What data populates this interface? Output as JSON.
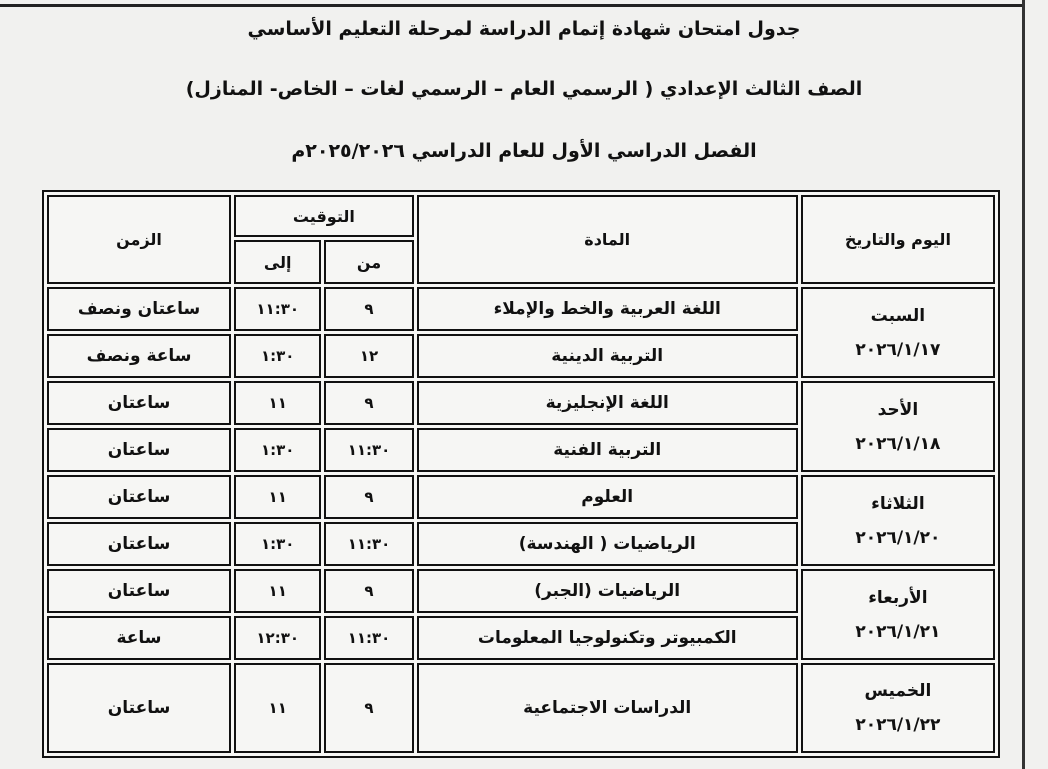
{
  "titles": {
    "line1": "جدول امتحان شهادة إتمام الدراسة لمرحلة التعليم الأساسي",
    "line2": "الصف الثالث الإعدادي ( الرسمي العام – الرسمي لغات – الخاص- المنازل)",
    "line3": "الفصل الدراسي الأول للعام الدراسي ٢٠٢٥/٢٠٢٦م"
  },
  "table": {
    "headers": {
      "day_date": "اليوم والتاريخ",
      "subject": "المادة",
      "timing": "التوقيت",
      "from": "من",
      "to": "إلى",
      "duration": "الزمن"
    },
    "days": [
      {
        "day": "السبت",
        "date": "٢٠٢٦/١/١٧",
        "exams": [
          {
            "subject": "اللغة العربية والخط والإملاء",
            "from": "٩",
            "to": "١١:٣٠",
            "duration": "ساعتان ونصف"
          },
          {
            "subject": "التربية الدينية",
            "from": "١٢",
            "to": "١:٣٠",
            "duration": "ساعة ونصف"
          }
        ]
      },
      {
        "day": "الأحد",
        "date": "٢٠٢٦/١/١٨",
        "exams": [
          {
            "subject": "اللغة الإنجليزية",
            "from": "٩",
            "to": "١١",
            "duration": "ساعتان"
          },
          {
            "subject": "التربية الفنية",
            "from": "١١:٣٠",
            "to": "١:٣٠",
            "duration": "ساعتان"
          }
        ]
      },
      {
        "day": "الثلاثاء",
        "date": "٢٠٢٦/١/٢٠",
        "exams": [
          {
            "subject": "العلوم",
            "from": "٩",
            "to": "١١",
            "duration": "ساعتان"
          },
          {
            "subject": "الرياضيات ( الهندسة)",
            "from": "١١:٣٠",
            "to": "١:٣٠",
            "duration": "ساعتان"
          }
        ]
      },
      {
        "day": "الأربعاء",
        "date": "٢٠٢٦/١/٢١",
        "exams": [
          {
            "subject": "الرياضيات (الجبر)",
            "from": "٩",
            "to": "١١",
            "duration": "ساعتان"
          },
          {
            "subject": "الكمبيوتر وتكنولوجيا المعلومات",
            "from": "١١:٣٠",
            "to": "١٢:٣٠",
            "duration": "ساعة"
          }
        ]
      },
      {
        "day": "الخميس",
        "date": "٢٠٢٦/١/٢٢",
        "exams": [
          {
            "subject": "الدراسات الاجتماعية",
            "from": "٩",
            "to": "١١",
            "duration": "ساعتان"
          }
        ]
      }
    ]
  }
}
